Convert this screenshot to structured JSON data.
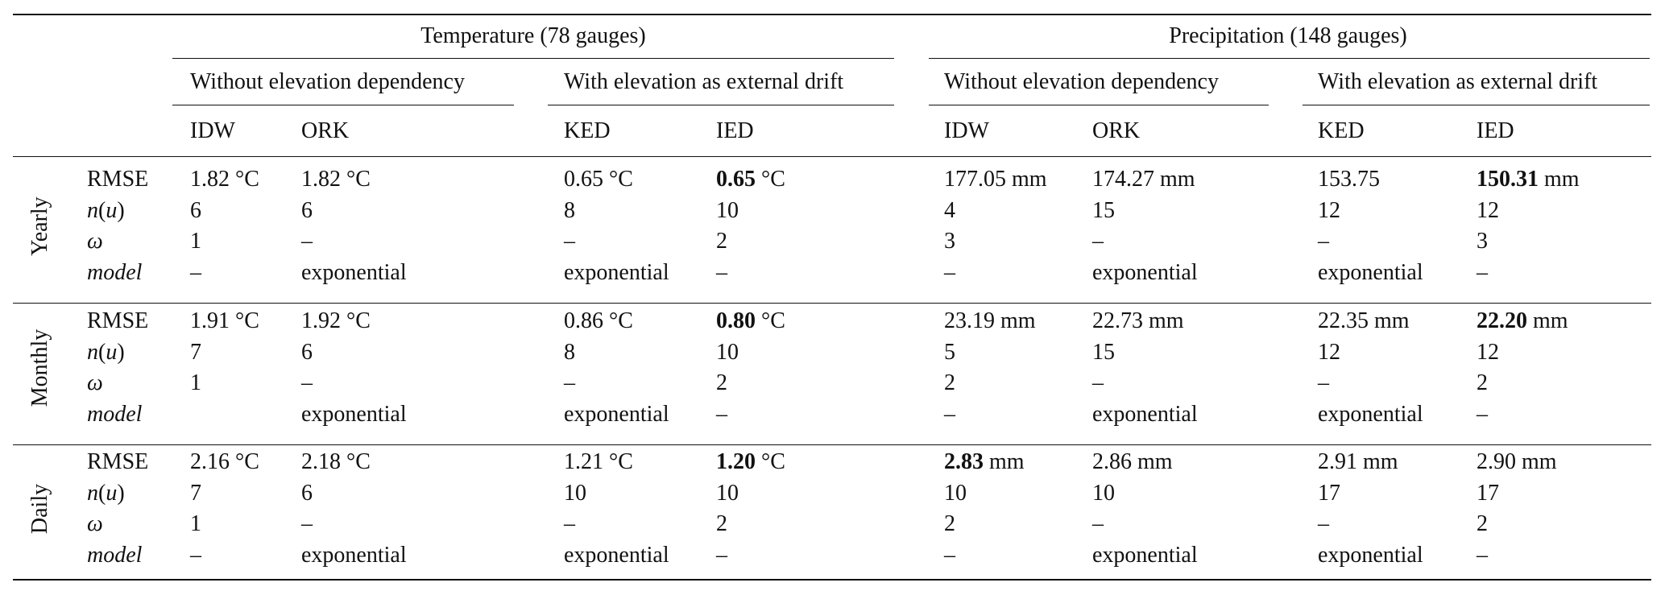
{
  "header": {
    "groups": [
      {
        "label": "Temperature (78 gauges)"
      },
      {
        "label": "Precipitation (148 gauges)"
      }
    ],
    "subgroups": [
      {
        "label": "Without elevation dependency"
      },
      {
        "label": "With elevation as external drift"
      },
      {
        "label": "Without elevation dependency"
      },
      {
        "label": "With elevation as external drift"
      }
    ],
    "columns": [
      "IDW",
      "ORK",
      "KED",
      "IED",
      "IDW",
      "ORK",
      "KED",
      "IED"
    ]
  },
  "row_labels": [
    "RMSE",
    "n(u)",
    "ω",
    "model"
  ],
  "blocks": [
    {
      "label": "Yearly",
      "rows": [
        [
          {
            "v": "1.82",
            "u": " °C"
          },
          {
            "v": "1.82",
            "u": " °C"
          },
          {
            "v": "0.65",
            "u": " °C"
          },
          {
            "v": "0.65",
            "u": " °C",
            "bold": true
          },
          {
            "v": "177.05",
            "u": " mm"
          },
          {
            "v": "174.27",
            "u": " mm"
          },
          {
            "v": "153.75",
            "u": ""
          },
          {
            "v": "150.31",
            "u": " mm",
            "bold": true
          }
        ],
        [
          {
            "v": "6"
          },
          {
            "v": "6"
          },
          {
            "v": "8"
          },
          {
            "v": "10"
          },
          {
            "v": "4"
          },
          {
            "v": "15"
          },
          {
            "v": "12"
          },
          {
            "v": "12"
          }
        ],
        [
          {
            "v": "1"
          },
          {
            "v": "–"
          },
          {
            "v": "–"
          },
          {
            "v": "2"
          },
          {
            "v": "3"
          },
          {
            "v": "–"
          },
          {
            "v": "–"
          },
          {
            "v": "3"
          }
        ],
        [
          {
            "v": "–"
          },
          {
            "v": "exponential"
          },
          {
            "v": "exponential"
          },
          {
            "v": "–"
          },
          {
            "v": "–"
          },
          {
            "v": "exponential"
          },
          {
            "v": "exponential"
          },
          {
            "v": "–"
          }
        ]
      ]
    },
    {
      "label": "Monthly",
      "rows": [
        [
          {
            "v": "1.91",
            "u": " °C"
          },
          {
            "v": "1.92",
            "u": " °C"
          },
          {
            "v": "0.86",
            "u": " °C"
          },
          {
            "v": "0.80",
            "u": " °C",
            "bold": true
          },
          {
            "v": "23.19",
            "u": " mm"
          },
          {
            "v": "22.73",
            "u": " mm"
          },
          {
            "v": "22.35",
            "u": " mm"
          },
          {
            "v": "22.20",
            "u": " mm",
            "bold": true
          }
        ],
        [
          {
            "v": "7"
          },
          {
            "v": "6"
          },
          {
            "v": "8"
          },
          {
            "v": "10"
          },
          {
            "v": "5"
          },
          {
            "v": "15"
          },
          {
            "v": "12"
          },
          {
            "v": "12"
          }
        ],
        [
          {
            "v": "1"
          },
          {
            "v": "–"
          },
          {
            "v": "–"
          },
          {
            "v": "2"
          },
          {
            "v": "2"
          },
          {
            "v": "–"
          },
          {
            "v": "–"
          },
          {
            "v": "2"
          }
        ],
        [
          {
            "v": ""
          },
          {
            "v": "exponential"
          },
          {
            "v": "exponential"
          },
          {
            "v": "–"
          },
          {
            "v": "–"
          },
          {
            "v": "exponential"
          },
          {
            "v": "exponential"
          },
          {
            "v": "–"
          }
        ]
      ]
    },
    {
      "label": "Daily",
      "rows": [
        [
          {
            "v": "2.16",
            "u": " °C"
          },
          {
            "v": "2.18",
            "u": " °C"
          },
          {
            "v": "1.21",
            "u": " °C"
          },
          {
            "v": "1.20",
            "u": " °C",
            "bold": true
          },
          {
            "v": "2.83",
            "u": " mm",
            "bold": true
          },
          {
            "v": "2.86",
            "u": " mm"
          },
          {
            "v": "2.91",
            "u": " mm"
          },
          {
            "v": "2.90",
            "u": " mm"
          }
        ],
        [
          {
            "v": "7"
          },
          {
            "v": "6"
          },
          {
            "v": "10"
          },
          {
            "v": "10"
          },
          {
            "v": "10"
          },
          {
            "v": "10"
          },
          {
            "v": "17"
          },
          {
            "v": "17"
          }
        ],
        [
          {
            "v": "1"
          },
          {
            "v": "–"
          },
          {
            "v": "–"
          },
          {
            "v": "2"
          },
          {
            "v": "2"
          },
          {
            "v": "–"
          },
          {
            "v": "–"
          },
          {
            "v": "2"
          }
        ],
        [
          {
            "v": "–"
          },
          {
            "v": "exponential"
          },
          {
            "v": "exponential"
          },
          {
            "v": "–"
          },
          {
            "v": "–"
          },
          {
            "v": "exponential"
          },
          {
            "v": "exponential"
          },
          {
            "v": "–"
          }
        ]
      ]
    }
  ]
}
